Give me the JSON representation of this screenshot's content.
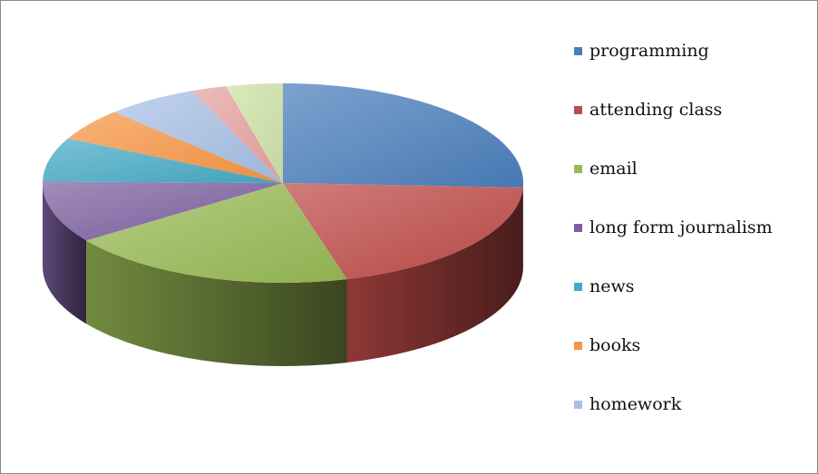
{
  "chart_data": {
    "type": "pie",
    "style": "3d",
    "legend_position": "right",
    "slices": [
      {
        "label": "programming",
        "value": 27,
        "color": "#4a7ebb"
      },
      {
        "label": "attending class",
        "value": 21,
        "color": "#be4b48"
      },
      {
        "label": "email",
        "value": 20.5,
        "color": "#98b954"
      },
      {
        "label": "long form journalism",
        "value": 10.5,
        "color": "#7d60a0"
      },
      {
        "label": "news",
        "value": 7.5,
        "color": "#46aac5"
      },
      {
        "label": "books",
        "value": 5.5,
        "color": "#f69545"
      },
      {
        "label": "homework",
        "value": 6.5,
        "color": "#a7c0e5"
      },
      {
        "value": 2.5,
        "color": "#e6a2a0"
      },
      {
        "value": 4,
        "color": "#cde2a6"
      }
    ]
  }
}
